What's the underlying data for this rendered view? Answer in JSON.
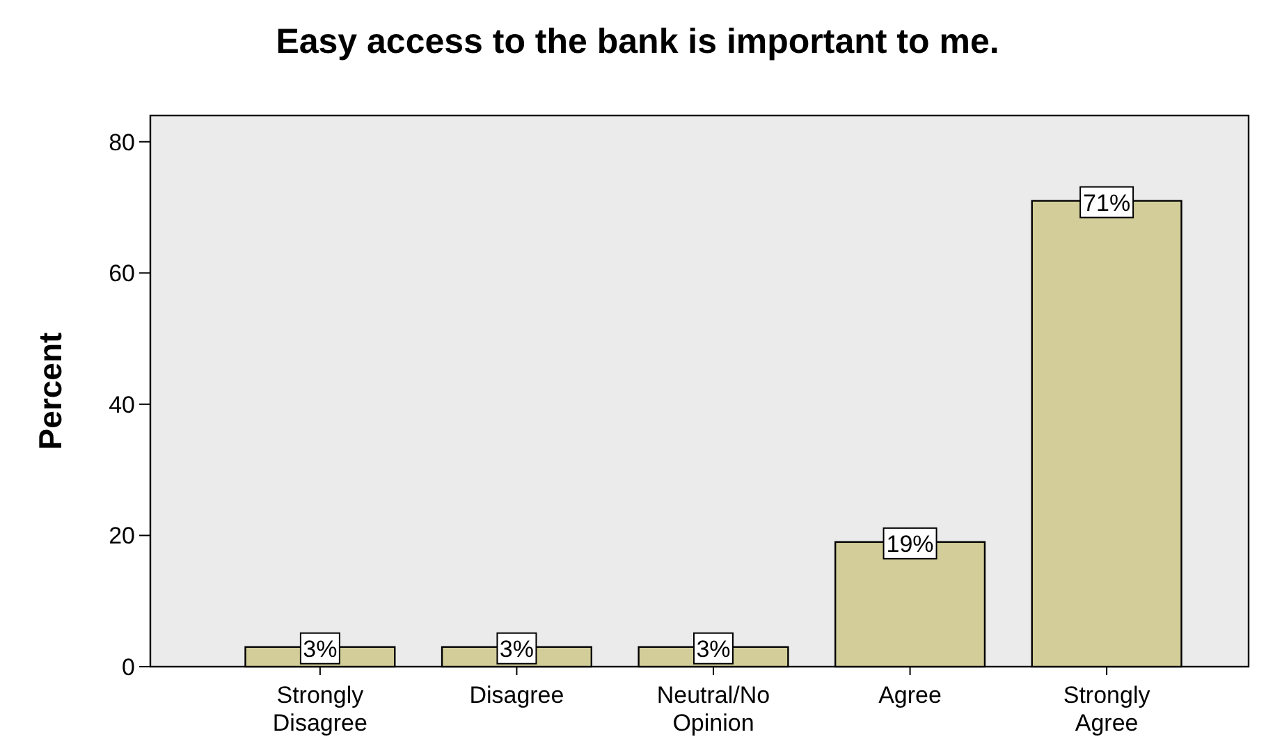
{
  "chart_data": {
    "type": "bar",
    "title": "Easy access to the bank is important to me.",
    "ylabel": "Percent",
    "categories": [
      "Strongly Disagree",
      "Disagree",
      "Neutral/No Opinion",
      "Agree",
      "Strongly Agree"
    ],
    "values": [
      3,
      3,
      3,
      19,
      71
    ],
    "value_labels": [
      "3%",
      "3%",
      "3%",
      "19%",
      "71%"
    ],
    "color": "#d3ce99",
    "ylim": [
      0,
      84
    ],
    "yticks": [
      0,
      20,
      40,
      60,
      80
    ],
    "grid": false
  }
}
